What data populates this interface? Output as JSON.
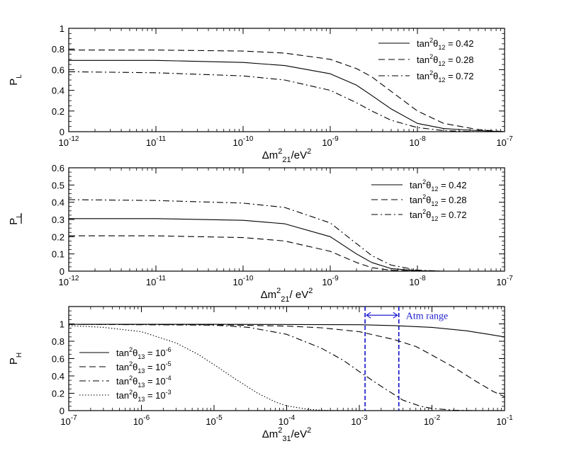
{
  "chart_data": [
    {
      "type": "line",
      "xscale": "log",
      "xlim": [
        1e-12,
        1e-07
      ],
      "ylim": [
        0,
        1
      ],
      "yticks": [
        0,
        0.2,
        0.4,
        0.6,
        0.8,
        1
      ],
      "ytick_labels": [
        "0",
        "0.2",
        "0.4",
        "0.6",
        "0.8",
        "1"
      ],
      "xtick_labels": [
        {
          "base": "10",
          "exp": "-12"
        },
        {
          "base": "10",
          "exp": "-11"
        },
        {
          "base": "10",
          "exp": "-10"
        },
        {
          "base": "10",
          "exp": "-9"
        },
        {
          "base": "10",
          "exp": "-8"
        },
        {
          "base": "10",
          "exp": "-7"
        }
      ],
      "xlabel": {
        "pre": "Δm",
        "sup": "2",
        "sub": "21",
        "post": "/eV",
        "post_sup": "2"
      },
      "ylabel": {
        "main": "P",
        "sub": "L",
        "overline": false
      },
      "legend_position": "top-right",
      "series": [
        {
          "name": "tan²θ₁₂ = 0.42",
          "legend": {
            "pre": "tan",
            "sup": "2",
            "mid": "θ",
            "sub": "12",
            "post": " = 0.42"
          },
          "style": "solid",
          "x": [
            1e-12,
            1e-11,
            1e-10,
            3e-10,
            1e-09,
            2e-09,
            3e-09,
            5e-09,
            1e-08,
            2e-08,
            5e-08,
            1e-07
          ],
          "y": [
            0.69,
            0.69,
            0.67,
            0.64,
            0.56,
            0.45,
            0.35,
            0.22,
            0.08,
            0.03,
            0.01,
            0.0
          ]
        },
        {
          "name": "tan²θ₁₂ = 0.28",
          "legend": {
            "pre": "tan",
            "sup": "2",
            "mid": "θ",
            "sub": "12",
            "post": " = 0.28"
          },
          "style": "dashed",
          "x": [
            1e-12,
            1e-11,
            1e-10,
            3e-10,
            1e-09,
            2e-09,
            3e-09,
            5e-09,
            1e-08,
            2e-08,
            5e-08,
            1e-07
          ],
          "y": [
            0.79,
            0.79,
            0.78,
            0.76,
            0.7,
            0.61,
            0.53,
            0.39,
            0.2,
            0.08,
            0.02,
            0.0
          ]
        },
        {
          "name": "tan²θ₁₂ = 0.72",
          "legend": {
            "pre": "tan",
            "sup": "2",
            "mid": "θ",
            "sub": "12",
            "post": " = 0.72"
          },
          "style": "dashdot",
          "x": [
            1e-12,
            1e-11,
            1e-10,
            3e-10,
            1e-09,
            2e-09,
            3e-09,
            5e-09,
            1e-08,
            2e-08,
            5e-08,
            1e-07
          ],
          "y": [
            0.58,
            0.57,
            0.54,
            0.5,
            0.4,
            0.28,
            0.2,
            0.11,
            0.04,
            0.01,
            0.0,
            0.0
          ]
        }
      ]
    },
    {
      "type": "line",
      "xscale": "log",
      "xlim": [
        1e-12,
        1e-07
      ],
      "ylim": [
        0,
        0.6
      ],
      "yticks": [
        0,
        0.1,
        0.2,
        0.3,
        0.4,
        0.5,
        0.6
      ],
      "ytick_labels": [
        "0",
        "0.1",
        "0.2",
        "0.3",
        "0.4",
        "0.5",
        "0.6"
      ],
      "xtick_labels": [
        {
          "base": "10",
          "exp": "-12"
        },
        {
          "base": "10",
          "exp": "-11"
        },
        {
          "base": "10",
          "exp": "-10"
        },
        {
          "base": "10",
          "exp": "-9"
        },
        {
          "base": "10",
          "exp": "-8"
        },
        {
          "base": "10",
          "exp": "-7"
        }
      ],
      "xlabel": {
        "pre": "Δm",
        "sup": "2",
        "sub": "21",
        "post": "/ eV",
        "post_sup": "2"
      },
      "ylabel": {
        "main": "P",
        "sub": "L",
        "overline": true
      },
      "legend_position": "top-right",
      "series": [
        {
          "name": "tan²θ₁₂ = 0.42",
          "legend": {
            "pre": "tan",
            "sup": "2",
            "mid": "θ",
            "sub": "12",
            "post": " = 0.42"
          },
          "style": "solid",
          "x": [
            1e-12,
            1e-11,
            1e-10,
            3e-10,
            1e-09,
            2e-09,
            3e-09,
            5e-09,
            1e-08,
            2e-08,
            5e-08,
            1e-07
          ],
          "y": [
            0.305,
            0.305,
            0.295,
            0.275,
            0.2,
            0.1,
            0.05,
            0.015,
            0.003,
            0.0,
            0.0,
            0.0
          ]
        },
        {
          "name": "tan²θ₁₂ = 0.28",
          "legend": {
            "pre": "tan",
            "sup": "2",
            "mid": "θ",
            "sub": "12",
            "post": " = 0.28"
          },
          "style": "dashed",
          "x": [
            1e-12,
            1e-11,
            1e-10,
            3e-10,
            1e-09,
            2e-09,
            3e-09,
            5e-09,
            1e-08,
            2e-08,
            5e-08,
            1e-07
          ],
          "y": [
            0.205,
            0.205,
            0.195,
            0.175,
            0.115,
            0.05,
            0.02,
            0.005,
            0.001,
            0.0,
            0.0,
            0.0
          ]
        },
        {
          "name": "tan²θ₁₂ = 0.72",
          "legend": {
            "pre": "tan",
            "sup": "2",
            "mid": "θ",
            "sub": "12",
            "post": " = 0.72"
          },
          "style": "dashdot",
          "x": [
            1e-12,
            1e-11,
            1e-10,
            3e-10,
            1e-09,
            2e-09,
            3e-09,
            5e-09,
            1e-08,
            2e-08,
            5e-08,
            1e-07
          ],
          "y": [
            0.415,
            0.41,
            0.395,
            0.37,
            0.28,
            0.16,
            0.09,
            0.035,
            0.006,
            0.0,
            0.0,
            0.0
          ]
        }
      ]
    },
    {
      "type": "line",
      "xscale": "log",
      "xlim": [
        1e-07,
        0.1
      ],
      "ylim": [
        0,
        1.2
      ],
      "yticks": [
        0,
        0.2,
        0.4,
        0.6,
        0.8,
        1
      ],
      "ytick_labels": [
        "0",
        "0.2",
        "0.4",
        "0.6",
        "0.8",
        "1"
      ],
      "xtick_labels": [
        {
          "base": "10",
          "exp": "-7"
        },
        {
          "base": "10",
          "exp": "-6"
        },
        {
          "base": "10",
          "exp": "-5"
        },
        {
          "base": "10",
          "exp": "-4"
        },
        {
          "base": "10",
          "exp": "-3"
        },
        {
          "base": "10",
          "exp": "-2"
        },
        {
          "base": "10",
          "exp": "-1"
        }
      ],
      "xlabel": {
        "pre": "Δm",
        "sup": "2",
        "sub": "31",
        "post": "/eV",
        "post_sup": "2"
      },
      "ylabel": {
        "main": "P",
        "sub": "H",
        "overline": false
      },
      "legend_position": "left",
      "series": [
        {
          "name": "tan²θ₁₃ = 10⁻⁶",
          "legend": {
            "pre": "tan",
            "sup": "2",
            "mid": "θ",
            "sub": "13",
            "post": " = 10",
            "post_sup": "-6"
          },
          "style": "solid",
          "x": [
            1e-07,
            1e-05,
            0.001,
            0.003,
            0.01,
            0.03,
            0.06,
            0.1
          ],
          "y": [
            0.995,
            0.995,
            0.99,
            0.98,
            0.96,
            0.92,
            0.88,
            0.85
          ]
        },
        {
          "name": "tan²θ₁₃ = 10⁻⁵",
          "legend": {
            "pre": "tan",
            "sup": "2",
            "mid": "θ",
            "sub": "13",
            "post": " = 10",
            "post_sup": "-5"
          },
          "style": "dashed",
          "x": [
            1e-07,
            1e-05,
            0.0001,
            0.0003,
            0.001,
            0.003,
            0.006,
            0.01,
            0.02,
            0.04,
            0.07,
            0.1
          ],
          "y": [
            0.995,
            0.99,
            0.975,
            0.955,
            0.91,
            0.82,
            0.74,
            0.64,
            0.5,
            0.34,
            0.22,
            0.16
          ]
        },
        {
          "name": "tan²θ₁₃ = 10⁻⁴",
          "legend": {
            "pre": "tan",
            "sup": "2",
            "mid": "θ",
            "sub": "13",
            "post": " = 10",
            "post_sup": "-4"
          },
          "style": "dashdot",
          "x": [
            1e-07,
            1e-05,
            3e-05,
            0.0001,
            0.0003,
            0.0006,
            0.001,
            0.002,
            0.004,
            0.007,
            0.01,
            0.02,
            0.04,
            0.1
          ],
          "y": [
            0.995,
            0.985,
            0.96,
            0.88,
            0.72,
            0.58,
            0.45,
            0.28,
            0.12,
            0.05,
            0.025,
            0.005,
            0.0,
            0.0
          ]
        },
        {
          "name": "tan²θ₁₃ = 10⁻³",
          "legend": {
            "pre": "tan",
            "sup": "2",
            "mid": "θ",
            "sub": "13",
            "post": " = 10",
            "post_sup": "-3"
          },
          "style": "dotted",
          "x": [
            1e-07,
            3e-07,
            1e-06,
            3e-06,
            6e-06,
            1e-05,
            2e-05,
            4e-05,
            7e-05,
            0.0001,
            0.0002,
            0.0003,
            0.0005,
            0.001,
            0.1
          ],
          "y": [
            0.98,
            0.96,
            0.91,
            0.78,
            0.65,
            0.53,
            0.36,
            0.2,
            0.1,
            0.055,
            0.015,
            0.005,
            0.0,
            0.0,
            0.0
          ]
        }
      ],
      "vlines": [
        0.0012,
        0.0035
      ],
      "vline_color": "#1010c8",
      "annotation": {
        "text": "Atm range",
        "color": "#1f1fd0",
        "arrow_from": 0.0012,
        "arrow_to": 0.0035,
        "y": 1.1
      }
    }
  ]
}
